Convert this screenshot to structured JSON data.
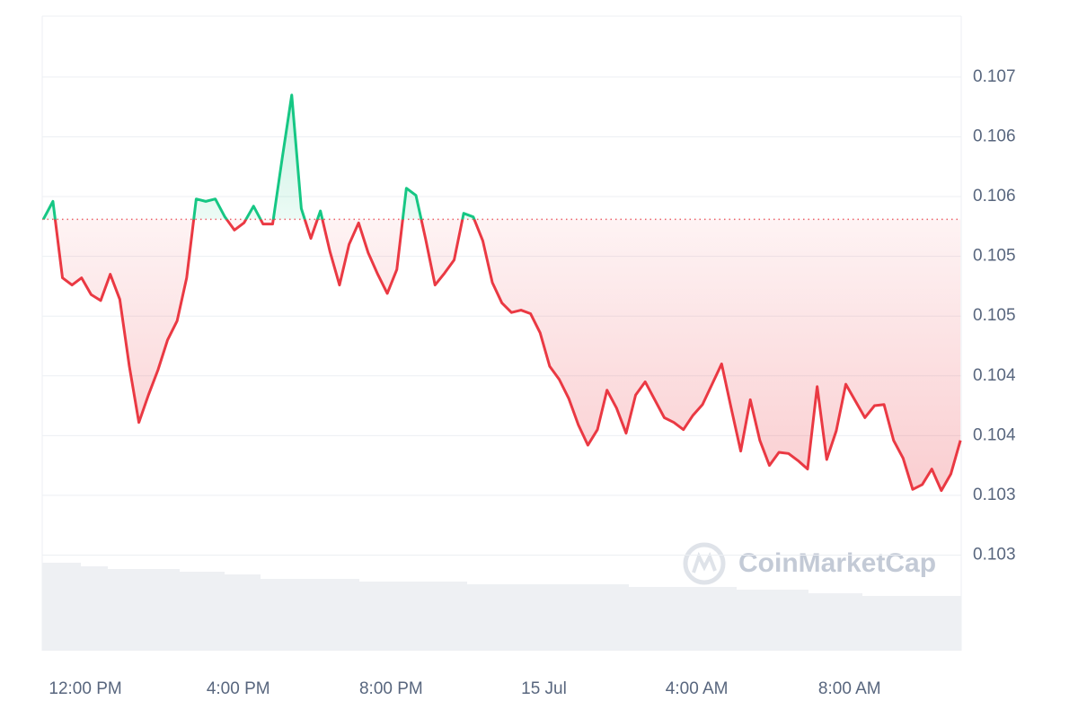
{
  "chart_data": {
    "type": "line",
    "watermark": "CoinMarketCap",
    "reference_value": 0.10581,
    "colors": {
      "up": "#16c784",
      "down": "#ea3943"
    },
    "grid": true,
    "xlim": [
      -13.13,
      10.92
    ],
    "xticks": [
      {
        "value": -12,
        "label": "12:00 PM"
      },
      {
        "value": -8,
        "label": "4:00 PM"
      },
      {
        "value": -4,
        "label": "8:00 PM"
      },
      {
        "value": 0,
        "label": "15 Jul"
      },
      {
        "value": 4,
        "label": "4:00 AM"
      },
      {
        "value": 8,
        "label": "8:00 AM"
      }
    ],
    "ylim": [
      0.1022,
      0.10751
    ],
    "yticks": [
      {
        "value": 0.107,
        "label": "0.107"
      },
      {
        "value": 0.1065,
        "label": "0.106"
      },
      {
        "value": 0.106,
        "label": "0.106"
      },
      {
        "value": 0.1055,
        "label": "0.105"
      },
      {
        "value": 0.105,
        "label": "0.105"
      },
      {
        "value": 0.1045,
        "label": "0.104"
      },
      {
        "value": 0.104,
        "label": "0.104"
      },
      {
        "value": 0.1035,
        "label": "0.103"
      },
      {
        "value": 0.103,
        "label": "0.103"
      }
    ],
    "x": [
      -13.1,
      -12.85,
      -12.6,
      -12.35,
      -12.1,
      -11.85,
      -11.6,
      -11.35,
      -11.1,
      -10.85,
      -10.6,
      -10.35,
      -10.1,
      -9.85,
      -9.6,
      -9.35,
      -9.1,
      -8.85,
      -8.6,
      -8.35,
      -8.1,
      -7.85,
      -7.6,
      -7.35,
      -7.1,
      -6.85,
      -6.6,
      -6.35,
      -6.1,
      -5.85,
      -5.6,
      -5.35,
      -5.1,
      -4.85,
      -4.6,
      -4.35,
      -4.1,
      -3.85,
      -3.6,
      -3.35,
      -3.1,
      -2.85,
      -2.6,
      -2.35,
      -2.1,
      -1.85,
      -1.6,
      -1.35,
      -1.1,
      -0.85,
      -0.6,
      -0.35,
      -0.1,
      0.15,
      0.4,
      0.65,
      0.9,
      1.15,
      1.4,
      1.65,
      1.9,
      2.15,
      2.4,
      2.65,
      2.9,
      3.15,
      3.4,
      3.65,
      3.9,
      4.15,
      4.4,
      4.65,
      4.9,
      5.15,
      5.4,
      5.65,
      5.9,
      6.15,
      6.4,
      6.65,
      6.9,
      7.15,
      7.4,
      7.65,
      7.9,
      8.15,
      8.4,
      8.65,
      8.9,
      9.15,
      9.4,
      9.65,
      9.9,
      10.15,
      10.4,
      10.65,
      10.9
    ],
    "values": [
      0.10581,
      0.10596,
      0.10532,
      0.10526,
      0.10532,
      0.10518,
      0.10513,
      0.10535,
      0.10514,
      0.10458,
      0.10411,
      0.10434,
      0.10455,
      0.1048,
      0.10496,
      0.10532,
      0.10598,
      0.10596,
      0.10598,
      0.10583,
      0.10572,
      0.10578,
      0.10592,
      0.10577,
      0.10577,
      0.10632,
      0.10685,
      0.1059,
      0.10565,
      0.10588,
      0.10554,
      0.10526,
      0.1056,
      0.10578,
      0.10553,
      0.10535,
      0.10519,
      0.10539,
      0.10607,
      0.10601,
      0.10565,
      0.10526,
      0.10536,
      0.10547,
      0.10586,
      0.10583,
      0.10563,
      0.10528,
      0.10511,
      0.10503,
      0.10505,
      0.10502,
      0.10486,
      0.10458,
      0.10447,
      0.10431,
      0.10409,
      0.10392,
      0.10405,
      0.10438,
      0.10423,
      0.10402,
      0.10434,
      0.10445,
      0.1043,
      0.10415,
      0.10411,
      0.10405,
      0.10417,
      0.10426,
      0.10443,
      0.1046,
      0.10423,
      0.10387,
      0.1043,
      0.10396,
      0.10375,
      0.10386,
      0.10385,
      0.10379,
      0.10372,
      0.10441,
      0.1038,
      0.10404,
      0.10443,
      0.10429,
      0.10415,
      0.10425,
      0.10426,
      0.10396,
      0.10381,
      0.10355,
      0.10359,
      0.10372,
      0.10354,
      0.10368,
      0.10396
    ]
  }
}
